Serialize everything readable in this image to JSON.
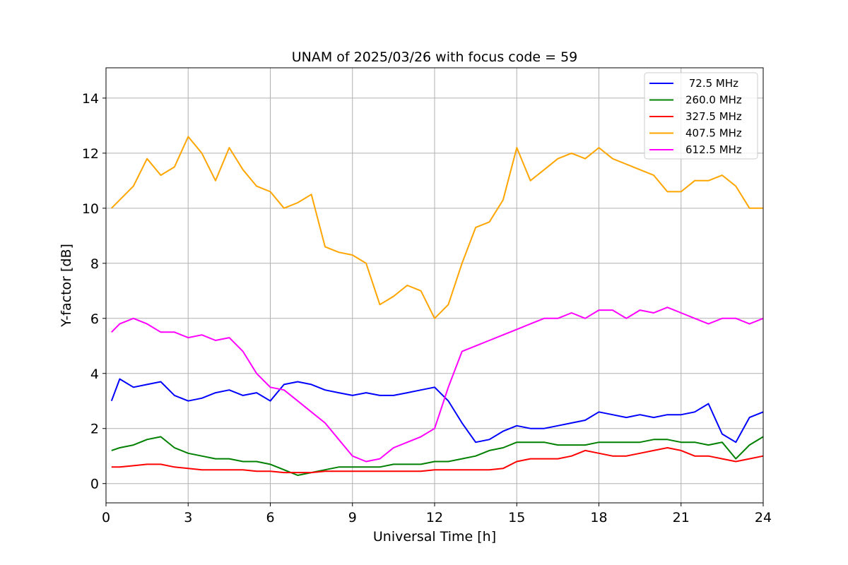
{
  "chart_data": {
    "type": "line",
    "title": "UNAM of 2025/03/26 with focus code = 59",
    "xlabel": "Universal Time [h]",
    "ylabel": "Y-factor [dB]",
    "xlim": [
      0,
      24
    ],
    "ylim": [
      -0.7,
      15.1
    ],
    "xticks": [
      0,
      3,
      6,
      9,
      12,
      15,
      18,
      21,
      24
    ],
    "yticks": [
      0,
      2,
      4,
      6,
      8,
      10,
      12,
      14
    ],
    "grid": true,
    "legend_position": "top-right",
    "series": [
      {
        "name": " 72.5 MHz",
        "color": "#0000ff",
        "x": [
          0.2,
          0.5,
          1.0,
          1.5,
          2.0,
          2.5,
          3.0,
          3.5,
          4.0,
          4.5,
          5.0,
          5.5,
          6.0,
          6.5,
          7.0,
          7.5,
          8.0,
          8.5,
          9.0,
          9.5,
          10.0,
          10.5,
          11.0,
          11.5,
          12.0,
          12.5,
          13.0,
          13.5,
          14.0,
          14.5,
          15.0,
          15.5,
          16.0,
          16.5,
          17.0,
          17.5,
          18.0,
          18.5,
          19.0,
          19.5,
          20.0,
          20.5,
          21.0,
          21.5,
          22.0,
          22.5,
          23.0,
          23.5,
          24.0
        ],
        "y": [
          3.0,
          3.8,
          3.5,
          3.6,
          3.7,
          3.2,
          3.0,
          3.1,
          3.3,
          3.4,
          3.2,
          3.3,
          3.0,
          3.6,
          3.7,
          3.6,
          3.4,
          3.3,
          3.2,
          3.3,
          3.2,
          3.2,
          3.3,
          3.4,
          3.5,
          3.0,
          2.2,
          1.5,
          1.6,
          1.9,
          2.1,
          2.0,
          2.0,
          2.1,
          2.2,
          2.3,
          2.6,
          2.5,
          2.4,
          2.5,
          2.4,
          2.5,
          2.5,
          2.6,
          2.9,
          1.8,
          1.5,
          2.4,
          2.6
        ]
      },
      {
        "name": "260.0 MHz",
        "color": "#008000",
        "x": [
          0.2,
          0.5,
          1.0,
          1.5,
          2.0,
          2.5,
          3.0,
          3.5,
          4.0,
          4.5,
          5.0,
          5.5,
          6.0,
          6.5,
          7.0,
          7.5,
          8.0,
          8.5,
          9.0,
          9.5,
          10.0,
          10.5,
          11.0,
          11.5,
          12.0,
          12.5,
          13.0,
          13.5,
          14.0,
          14.5,
          15.0,
          15.5,
          16.0,
          16.5,
          17.0,
          17.5,
          18.0,
          18.5,
          19.0,
          19.5,
          20.0,
          20.5,
          21.0,
          21.5,
          22.0,
          22.5,
          23.0,
          23.5,
          24.0
        ],
        "y": [
          1.2,
          1.3,
          1.4,
          1.6,
          1.7,
          1.3,
          1.1,
          1.0,
          0.9,
          0.9,
          0.8,
          0.8,
          0.7,
          0.5,
          0.3,
          0.4,
          0.5,
          0.6,
          0.6,
          0.6,
          0.6,
          0.7,
          0.7,
          0.7,
          0.8,
          0.8,
          0.9,
          1.0,
          1.2,
          1.3,
          1.5,
          1.5,
          1.5,
          1.4,
          1.4,
          1.4,
          1.5,
          1.5,
          1.5,
          1.5,
          1.6,
          1.6,
          1.5,
          1.5,
          1.4,
          1.5,
          0.9,
          1.4,
          1.7
        ]
      },
      {
        "name": "327.5 MHz",
        "color": "#ff0000",
        "x": [
          0.2,
          0.5,
          1.0,
          1.5,
          2.0,
          2.5,
          3.0,
          3.5,
          4.0,
          4.5,
          5.0,
          5.5,
          6.0,
          6.5,
          7.0,
          7.5,
          8.0,
          8.5,
          9.0,
          9.5,
          10.0,
          10.5,
          11.0,
          11.5,
          12.0,
          12.5,
          13.0,
          13.5,
          14.0,
          14.5,
          15.0,
          15.5,
          16.0,
          16.5,
          17.0,
          17.5,
          18.0,
          18.5,
          19.0,
          19.5,
          20.0,
          20.5,
          21.0,
          21.5,
          22.0,
          22.5,
          23.0,
          23.5,
          24.0
        ],
        "y": [
          0.6,
          0.6,
          0.65,
          0.7,
          0.7,
          0.6,
          0.55,
          0.5,
          0.5,
          0.5,
          0.5,
          0.45,
          0.45,
          0.4,
          0.4,
          0.4,
          0.45,
          0.45,
          0.45,
          0.45,
          0.45,
          0.45,
          0.45,
          0.45,
          0.5,
          0.5,
          0.5,
          0.5,
          0.5,
          0.55,
          0.8,
          0.9,
          0.9,
          0.9,
          1.0,
          1.2,
          1.1,
          1.0,
          1.0,
          1.1,
          1.2,
          1.3,
          1.2,
          1.0,
          1.0,
          0.9,
          0.8,
          0.9,
          1.0
        ]
      },
      {
        "name": "407.5 MHz",
        "color": "#ffa500",
        "x": [
          0.2,
          0.5,
          1.0,
          1.5,
          2.0,
          2.5,
          3.0,
          3.5,
          4.0,
          4.5,
          5.0,
          5.5,
          6.0,
          6.5,
          7.0,
          7.5,
          8.0,
          8.5,
          9.0,
          9.5,
          10.0,
          10.5,
          11.0,
          11.5,
          12.0,
          12.5,
          13.0,
          13.5,
          14.0,
          14.5,
          15.0,
          15.5,
          16.0,
          16.5,
          17.0,
          17.5,
          18.0,
          18.5,
          19.0,
          19.5,
          20.0,
          20.5,
          21.0,
          21.5,
          22.0,
          22.5,
          23.0,
          23.5,
          24.0
        ],
        "y": [
          10.0,
          10.3,
          10.8,
          11.8,
          11.2,
          11.5,
          12.6,
          12.0,
          11.0,
          12.2,
          11.4,
          10.8,
          10.6,
          10.0,
          10.2,
          10.5,
          8.6,
          8.4,
          8.3,
          8.0,
          6.5,
          6.8,
          7.2,
          7.0,
          6.0,
          6.5,
          8.0,
          9.3,
          9.5,
          10.3,
          12.2,
          11.0,
          11.4,
          11.8,
          12.0,
          11.8,
          12.2,
          11.8,
          11.6,
          11.4,
          11.2,
          10.6,
          10.6,
          11.0,
          11.0,
          11.2,
          10.8,
          10.0,
          10.0
        ]
      },
      {
        "name": "612.5 MHz",
        "color": "#ff00ff",
        "x": [
          0.2,
          0.5,
          1.0,
          1.5,
          2.0,
          2.5,
          3.0,
          3.5,
          4.0,
          4.5,
          5.0,
          5.5,
          6.0,
          6.5,
          7.0,
          7.5,
          8.0,
          8.5,
          9.0,
          9.5,
          10.0,
          10.5,
          11.0,
          11.5,
          12.0,
          12.5,
          13.0,
          13.5,
          14.0,
          14.5,
          15.0,
          15.5,
          16.0,
          16.5,
          17.0,
          17.5,
          18.0,
          18.5,
          19.0,
          19.5,
          20.0,
          20.5,
          21.0,
          21.5,
          22.0,
          22.5,
          23.0,
          23.5,
          24.0
        ],
        "y": [
          5.5,
          5.8,
          6.0,
          5.8,
          5.5,
          5.5,
          5.3,
          5.4,
          5.2,
          5.3,
          4.8,
          4.0,
          3.5,
          3.4,
          3.0,
          2.6,
          2.2,
          1.6,
          1.0,
          0.8,
          0.9,
          1.3,
          1.5,
          1.7,
          2.0,
          3.5,
          4.8,
          5.0,
          5.2,
          5.4,
          5.6,
          5.8,
          6.0,
          6.0,
          6.2,
          6.0,
          6.3,
          6.3,
          6.0,
          6.3,
          6.2,
          6.4,
          6.2,
          6.0,
          5.8,
          6.0,
          6.0,
          5.8,
          6.0
        ]
      }
    ]
  }
}
